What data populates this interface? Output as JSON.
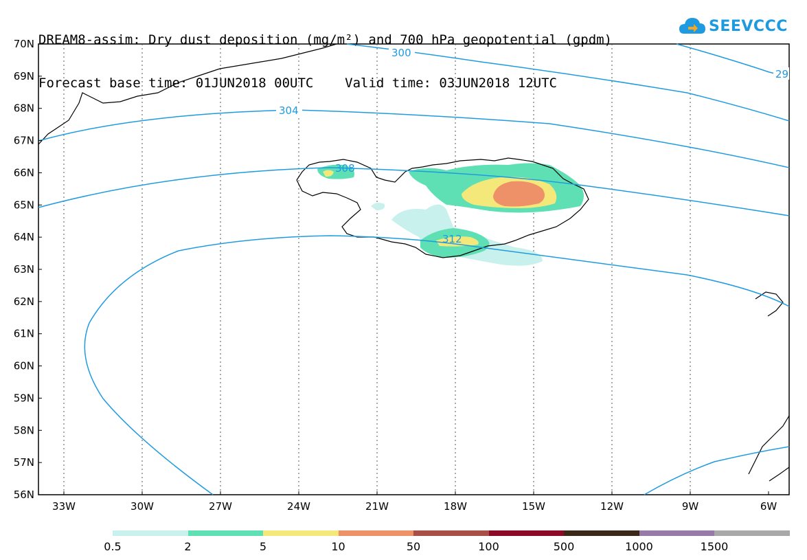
{
  "title": "DREAM8-assim: Dry dust deposition (mg/m²) and 700 hPa geopotential (gpdm)",
  "base_time": "Forecast base time: 01JUN2018 00UTC",
  "valid_time": "Valid time: 03JUN2018 12UTC",
  "logo": {
    "text": "SEEVCCC",
    "icon": "cloud-arrow-icon",
    "color": "#1e9be0"
  },
  "map": {
    "lat_labels": [
      "70N",
      "69N",
      "68N",
      "67N",
      "66N",
      "65N",
      "64N",
      "63N",
      "62N",
      "61N",
      "60N",
      "59N",
      "58N",
      "57N",
      "56N"
    ],
    "lon_labels": [
      "33W",
      "30W",
      "27W",
      "24W",
      "21W",
      "18W",
      "15W",
      "12W",
      "9W",
      "6W"
    ],
    "contour_color": "#1e9be0",
    "contour_labels": [
      "300",
      "29",
      "304",
      "308",
      "312"
    ]
  },
  "colorbar": {
    "labels": [
      "0.5",
      "2",
      "5",
      "10",
      "50",
      "100",
      "500",
      "1000",
      "1500"
    ],
    "colors": [
      "#c8f0ec",
      "#5ee0b4",
      "#f5e87a",
      "#ee9068",
      "#a85048",
      "#8c0a28",
      "#3a2818",
      "#987aa8",
      "#a8a8a8"
    ]
  }
}
